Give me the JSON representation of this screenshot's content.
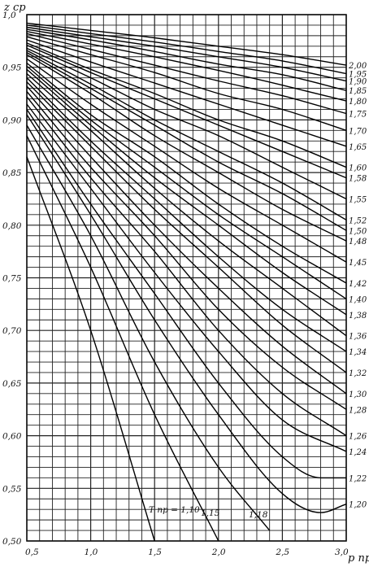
{
  "chart_data": {
    "type": "line",
    "xlabel": "p пр",
    "ylabel": "z cp",
    "xlim": [
      0.5,
      3.0
    ],
    "ylim": [
      0.5,
      1.0
    ],
    "x_ticks": [
      "0,5",
      "1,0",
      "1,5",
      "2,0",
      "2,5",
      "3,0"
    ],
    "y_ticks": [
      "0,50",
      "0,55",
      "0,60",
      "0,65",
      "0,70",
      "0,75",
      "0,80",
      "0,85",
      "0,90",
      "0,95",
      "1,0"
    ],
    "grid": true,
    "annotations": [
      "T пр = 1,10",
      "1,15",
      "1,18"
    ],
    "series": [
      {
        "name": "1,10",
        "x": [
          0.5,
          1.0,
          1.5
        ],
        "y": [
          0.865,
          0.7,
          0.5
        ]
      },
      {
        "name": "1,15",
        "x": [
          0.5,
          1.0,
          1.5,
          2.0
        ],
        "y": [
          0.885,
          0.76,
          0.62,
          0.5
        ]
      },
      {
        "name": "1,18",
        "x": [
          0.5,
          1.0,
          1.5,
          2.0,
          2.4
        ],
        "y": [
          0.895,
          0.79,
          0.67,
          0.57,
          0.51
        ]
      },
      {
        "name": "1,20",
        "x": [
          0.5,
          1.0,
          1.5,
          2.0,
          2.5,
          2.8,
          3.0
        ],
        "y": [
          0.905,
          0.81,
          0.71,
          0.62,
          0.545,
          0.527,
          0.535
        ]
      },
      {
        "name": "1,22",
        "x": [
          0.5,
          1.0,
          1.5,
          2.0,
          2.5,
          2.8,
          3.0
        ],
        "y": [
          0.91,
          0.82,
          0.735,
          0.65,
          0.58,
          0.56,
          0.56
        ]
      },
      {
        "name": "1,24",
        "x": [
          0.5,
          1.0,
          1.5,
          2.0,
          2.5,
          3.0
        ],
        "y": [
          0.915,
          0.835,
          0.755,
          0.68,
          0.615,
          0.585
        ]
      },
      {
        "name": "1,26",
        "x": [
          0.5,
          1.0,
          1.5,
          2.0,
          2.5,
          3.0
        ],
        "y": [
          0.922,
          0.845,
          0.775,
          0.7,
          0.64,
          0.6
        ]
      },
      {
        "name": "1,28",
        "x": [
          0.5,
          1.0,
          1.5,
          2.0,
          2.5,
          3.0
        ],
        "y": [
          0.927,
          0.855,
          0.79,
          0.72,
          0.665,
          0.625
        ]
      },
      {
        "name": "1,30",
        "x": [
          0.5,
          1.0,
          1.5,
          2.0,
          2.5,
          3.0
        ],
        "y": [
          0.932,
          0.865,
          0.8,
          0.74,
          0.685,
          0.64
        ]
      },
      {
        "name": "1,32",
        "x": [
          0.5,
          1.0,
          1.5,
          2.0,
          2.5,
          3.0
        ],
        "y": [
          0.936,
          0.875,
          0.815,
          0.76,
          0.705,
          0.66
        ]
      },
      {
        "name": "1,34",
        "x": [
          0.5,
          1.0,
          1.5,
          2.0,
          2.5,
          3.0
        ],
        "y": [
          0.94,
          0.88,
          0.825,
          0.77,
          0.72,
          0.68
        ]
      },
      {
        "name": "1,36",
        "x": [
          0.5,
          1.0,
          1.5,
          2.0,
          2.5,
          3.0
        ],
        "y": [
          0.944,
          0.89,
          0.835,
          0.785,
          0.74,
          0.695
        ]
      },
      {
        "name": "1,38",
        "x": [
          0.5,
          1.0,
          1.5,
          2.0,
          2.5,
          3.0
        ],
        "y": [
          0.948,
          0.895,
          0.845,
          0.8,
          0.755,
          0.715
        ]
      },
      {
        "name": "1,40",
        "x": [
          0.5,
          1.0,
          1.5,
          2.0,
          2.5,
          3.0
        ],
        "y": [
          0.951,
          0.9,
          0.855,
          0.81,
          0.77,
          0.73
        ]
      },
      {
        "name": "1,42",
        "x": [
          0.5,
          1.0,
          1.5,
          2.0,
          2.5,
          3.0
        ],
        "y": [
          0.954,
          0.905,
          0.865,
          0.82,
          0.78,
          0.745
        ]
      },
      {
        "name": "1,45",
        "x": [
          0.5,
          1.0,
          1.5,
          2.0,
          2.5,
          3.0
        ],
        "y": [
          0.958,
          0.915,
          0.875,
          0.835,
          0.8,
          0.765
        ]
      },
      {
        "name": "1,48",
        "x": [
          0.5,
          1.0,
          1.5,
          2.0,
          2.5,
          3.0
        ],
        "y": [
          0.962,
          0.925,
          0.885,
          0.85,
          0.815,
          0.785
        ]
      },
      {
        "name": "1,50",
        "x": [
          0.5,
          1.0,
          1.5,
          2.0,
          2.5,
          3.0
        ],
        "y": [
          0.964,
          0.93,
          0.895,
          0.86,
          0.83,
          0.795
        ]
      },
      {
        "name": "1,52",
        "x": [
          0.5,
          1.0,
          1.5,
          2.0,
          2.5,
          3.0
        ],
        "y": [
          0.966,
          0.934,
          0.9,
          0.87,
          0.84,
          0.805
        ]
      },
      {
        "name": "1,55",
        "x": [
          0.5,
          1.0,
          1.5,
          2.0,
          2.5,
          3.0
        ],
        "y": [
          0.968,
          0.94,
          0.91,
          0.885,
          0.855,
          0.825
        ]
      },
      {
        "name": "1,58",
        "x": [
          0.5,
          1.0,
          1.5,
          2.0,
          2.5,
          3.0
        ],
        "y": [
          0.971,
          0.945,
          0.92,
          0.895,
          0.87,
          0.845
        ]
      },
      {
        "name": "1,60",
        "x": [
          0.5,
          1.0,
          1.5,
          2.0,
          2.5,
          3.0
        ],
        "y": [
          0.973,
          0.948,
          0.925,
          0.9,
          0.88,
          0.855
        ]
      },
      {
        "name": "1,65",
        "x": [
          0.5,
          1.0,
          1.5,
          2.0,
          2.5,
          3.0
        ],
        "y": [
          0.976,
          0.955,
          0.935,
          0.915,
          0.895,
          0.875
        ]
      },
      {
        "name": "1,70",
        "x": [
          0.5,
          1.0,
          1.5,
          2.0,
          2.5,
          3.0
        ],
        "y": [
          0.979,
          0.962,
          0.945,
          0.925,
          0.91,
          0.89
        ]
      },
      {
        "name": "1,75",
        "x": [
          0.5,
          1.0,
          1.5,
          2.0,
          2.5,
          3.0
        ],
        "y": [
          0.982,
          0.967,
          0.952,
          0.937,
          0.923,
          0.906
        ]
      },
      {
        "name": "1,80",
        "x": [
          0.5,
          1.0,
          1.5,
          2.0,
          2.5,
          3.0
        ],
        "y": [
          0.984,
          0.972,
          0.96,
          0.947,
          0.933,
          0.918
        ]
      },
      {
        "name": "1,85",
        "x": [
          0.5,
          1.0,
          1.5,
          2.0,
          2.5,
          3.0
        ],
        "y": [
          0.986,
          0.976,
          0.965,
          0.953,
          0.943,
          0.928
        ]
      },
      {
        "name": "1,90",
        "x": [
          0.5,
          1.0,
          1.5,
          2.0,
          2.5,
          3.0
        ],
        "y": [
          0.988,
          0.979,
          0.97,
          0.96,
          0.95,
          0.937
        ]
      },
      {
        "name": "1,95",
        "x": [
          0.5,
          1.0,
          1.5,
          2.0,
          2.5,
          3.0
        ],
        "y": [
          0.99,
          0.982,
          0.974,
          0.965,
          0.956,
          0.944
        ]
      },
      {
        "name": "2,00",
        "x": [
          0.5,
          1.0,
          1.5,
          2.0,
          2.5,
          3.0
        ],
        "y": [
          0.992,
          0.985,
          0.978,
          0.97,
          0.962,
          0.952
        ]
      }
    ]
  }
}
